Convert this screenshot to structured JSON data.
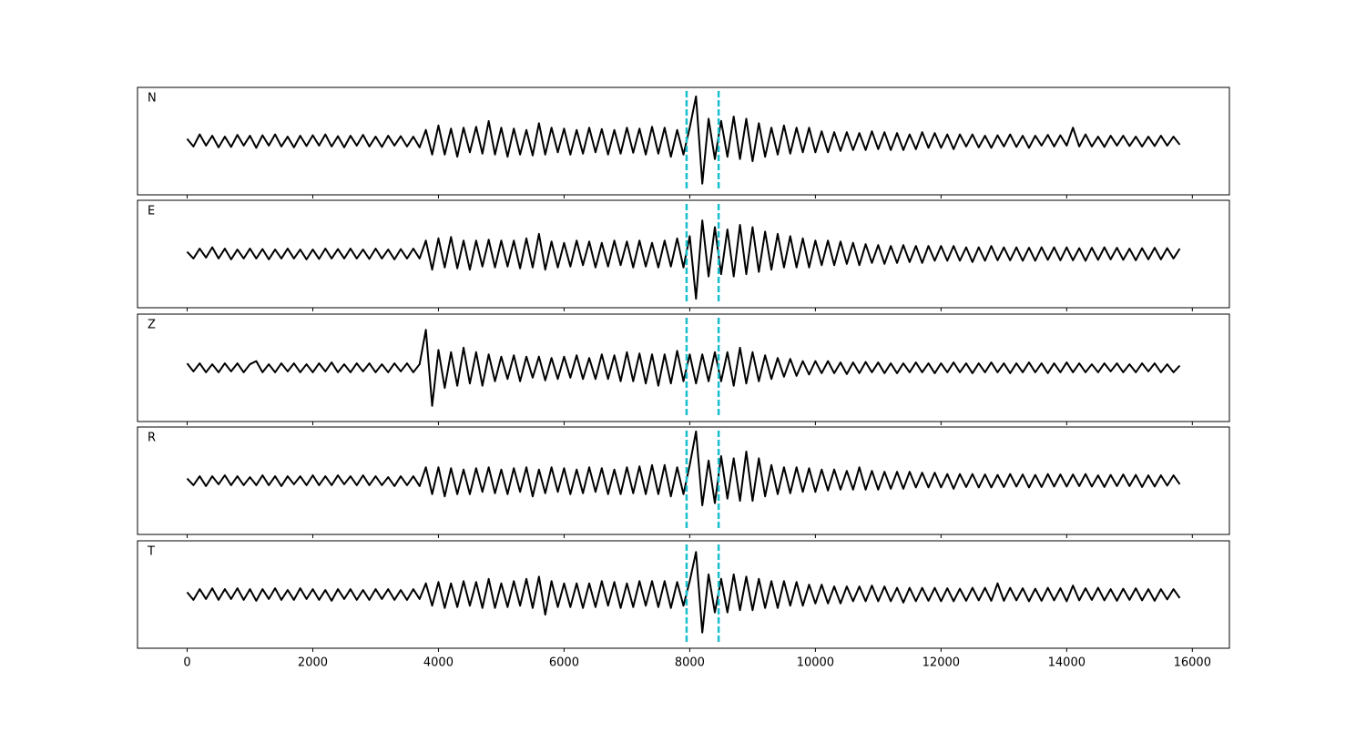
{
  "chart_data": {
    "type": "line",
    "x": [
      0,
      100,
      200,
      300,
      400,
      500,
      600,
      700,
      800,
      900,
      1000,
      1100,
      1200,
      1300,
      1400,
      1500,
      1600,
      1700,
      1800,
      1900,
      2000,
      2100,
      2200,
      2300,
      2400,
      2500,
      2600,
      2700,
      2800,
      2900,
      3000,
      3100,
      3200,
      3300,
      3400,
      3500,
      3600,
      3700,
      3800,
      3900,
      4000,
      4100,
      4200,
      4300,
      4400,
      4500,
      4600,
      4700,
      4800,
      4900,
      5000,
      5100,
      5200,
      5300,
      5400,
      5500,
      5600,
      5700,
      5800,
      5900,
      6000,
      6100,
      6200,
      6300,
      6400,
      6500,
      6600,
      6700,
      6800,
      6900,
      7000,
      7100,
      7200,
      7300,
      7400,
      7500,
      7600,
      7700,
      7800,
      7900,
      8000,
      8100,
      8200,
      8300,
      8400,
      8500,
      8600,
      8700,
      8800,
      8900,
      9000,
      9100,
      9200,
      9300,
      9400,
      9500,
      9600,
      9700,
      9800,
      9900,
      10000,
      10100,
      10200,
      10300,
      10400,
      10500,
      10600,
      10700,
      10800,
      10900,
      11000,
      11100,
      11200,
      11300,
      11400,
      11500,
      11600,
      11700,
      11800,
      11900,
      12000,
      12100,
      12200,
      12300,
      12400,
      12500,
      12600,
      12700,
      12800,
      12900,
      13000,
      13100,
      13200,
      13300,
      13400,
      13500,
      13600,
      13700,
      13800,
      13900,
      14000,
      14100,
      14200,
      14300,
      14400,
      14500,
      14600,
      14700,
      14800,
      14900,
      15000,
      15100,
      15200,
      15300,
      15400,
      15500,
      15600,
      15700,
      15800
    ],
    "series": [
      {
        "name": "N",
        "color": "#000000",
        "values": [
          0.05,
          -0.12,
          0.15,
          -0.1,
          0.12,
          -0.14,
          0.1,
          -0.13,
          0.14,
          -0.1,
          0.12,
          -0.15,
          0.13,
          -0.1,
          0.15,
          -0.12,
          0.1,
          -0.14,
          0.12,
          -0.11,
          0.13,
          -0.1,
          0.15,
          -0.12,
          0.11,
          -0.14,
          0.12,
          -0.1,
          0.14,
          -0.12,
          0.1,
          -0.13,
          0.12,
          -0.1,
          0.11,
          -0.12,
          0.1,
          -0.14,
          0.25,
          -0.3,
          0.35,
          -0.3,
          0.28,
          -0.35,
          0.3,
          -0.25,
          0.32,
          -0.28,
          0.45,
          -0.3,
          0.3,
          -0.35,
          0.28,
          -0.3,
          0.25,
          -0.32,
          0.4,
          -0.3,
          0.3,
          -0.25,
          0.28,
          -0.3,
          0.25,
          -0.28,
          0.3,
          -0.25,
          0.27,
          -0.3,
          0.25,
          -0.28,
          0.3,
          -0.26,
          0.28,
          -0.3,
          0.32,
          -0.28,
          0.3,
          -0.35,
          0.25,
          -0.3,
          0.3,
          1.0,
          -0.95,
          0.5,
          -0.4,
          0.45,
          -0.35,
          0.55,
          -0.4,
          0.5,
          -0.45,
          0.4,
          -0.35,
          0.3,
          -0.3,
          0.35,
          -0.28,
          0.3,
          -0.25,
          0.3,
          -0.25,
          0.22,
          -0.25,
          0.2,
          -0.22,
          0.2,
          -0.2,
          0.18,
          -0.2,
          0.22,
          -0.18,
          0.2,
          -0.2,
          0.18,
          -0.2,
          0.15,
          -0.18,
          0.2,
          -0.15,
          0.18,
          -0.15,
          0.15,
          -0.18,
          0.15,
          -0.12,
          0.15,
          -0.14,
          0.12,
          -0.15,
          0.13,
          -0.12,
          0.15,
          -0.13,
          0.12,
          -0.15,
          0.12,
          -0.1,
          0.14,
          -0.12,
          0.13,
          -0.1,
          0.3,
          -0.12,
          0.15,
          -0.12,
          0.1,
          -0.13,
          0.12,
          -0.1,
          0.12,
          -0.11,
          0.1,
          -0.12,
          0.1,
          -0.11,
          0.12,
          -0.1,
          0.1,
          -0.08
        ]
      },
      {
        "name": "E",
        "color": "#000000",
        "values": [
          0.05,
          -0.1,
          0.12,
          -0.08,
          0.15,
          -0.1,
          0.12,
          -0.12,
          0.1,
          -0.1,
          0.12,
          -0.1,
          0.11,
          -0.12,
          0.1,
          -0.1,
          0.12,
          -0.1,
          0.1,
          -0.12,
          0.1,
          -0.11,
          0.12,
          -0.1,
          0.11,
          -0.1,
          0.12,
          -0.1,
          0.1,
          -0.11,
          0.12,
          -0.1,
          0.1,
          -0.12,
          0.11,
          -0.1,
          0.12,
          -0.1,
          0.3,
          -0.35,
          0.35,
          -0.3,
          0.38,
          -0.32,
          0.3,
          -0.35,
          0.3,
          -0.28,
          0.32,
          -0.3,
          0.3,
          -0.28,
          0.3,
          -0.32,
          0.35,
          -0.3,
          0.45,
          -0.35,
          0.28,
          -0.3,
          0.25,
          -0.28,
          0.3,
          -0.25,
          0.28,
          -0.3,
          0.25,
          -0.28,
          0.3,
          -0.25,
          0.28,
          -0.3,
          0.3,
          -0.28,
          0.25,
          -0.3,
          0.3,
          -0.28,
          0.35,
          -0.3,
          0.4,
          -1.0,
          0.75,
          -0.5,
          0.6,
          -0.45,
          0.55,
          -0.5,
          0.65,
          -0.45,
          0.6,
          -0.4,
          0.5,
          -0.35,
          0.45,
          -0.3,
          0.4,
          -0.3,
          0.35,
          -0.3,
          0.3,
          -0.25,
          0.3,
          -0.25,
          0.28,
          -0.22,
          0.25,
          -0.25,
          0.22,
          -0.2,
          0.2,
          -0.22,
          0.18,
          -0.2,
          0.2,
          -0.18,
          0.18,
          -0.2,
          0.18,
          -0.15,
          0.18,
          -0.15,
          0.18,
          -0.15,
          0.15,
          -0.18,
          0.15,
          -0.15,
          0.18,
          -0.14,
          0.15,
          -0.14,
          0.15,
          -0.15,
          0.14,
          -0.15,
          0.15,
          -0.13,
          0.15,
          -0.14,
          0.15,
          -0.14,
          0.13,
          -0.15,
          0.14,
          -0.13,
          0.15,
          -0.12,
          0.14,
          -0.13,
          0.12,
          -0.14,
          0.13,
          -0.12,
          0.14,
          -0.12,
          0.13,
          -0.1,
          0.12
        ]
      },
      {
        "name": "Z",
        "color": "#000000",
        "values": [
          0.1,
          -0.08,
          0.1,
          -0.1,
          0.08,
          -0.1,
          0.1,
          -0.08,
          0.1,
          -0.1,
          0.08,
          0.15,
          -0.1,
          0.08,
          -0.1,
          0.1,
          -0.08,
          0.1,
          -0.1,
          0.08,
          -0.1,
          0.1,
          -0.08,
          0.12,
          -0.1,
          0.08,
          -0.1,
          0.1,
          -0.08,
          0.1,
          -0.1,
          0.08,
          -0.1,
          0.1,
          -0.08,
          0.1,
          -0.1,
          0.08,
          0.85,
          -0.85,
          0.4,
          -0.45,
          0.35,
          -0.4,
          0.45,
          -0.35,
          0.35,
          -0.4,
          0.3,
          -0.3,
          0.25,
          -0.25,
          0.28,
          -0.3,
          0.25,
          -0.22,
          0.25,
          -0.28,
          0.22,
          -0.25,
          0.25,
          -0.22,
          0.28,
          -0.25,
          0.22,
          -0.25,
          0.3,
          -0.25,
          0.28,
          -0.3,
          0.35,
          -0.3,
          0.32,
          -0.35,
          0.3,
          -0.4,
          0.3,
          -0.35,
          0.38,
          -0.3,
          0.3,
          -0.35,
          0.3,
          -0.3,
          0.35,
          -0.3,
          0.35,
          -0.4,
          0.45,
          -0.35,
          0.35,
          -0.3,
          0.28,
          -0.25,
          0.22,
          -0.2,
          0.2,
          -0.18,
          0.15,
          -0.15,
          0.15,
          -0.12,
          0.15,
          -0.12,
          0.12,
          -0.14,
          0.12,
          -0.12,
          0.13,
          -0.1,
          0.12,
          -0.12,
          0.1,
          -0.12,
          0.1,
          -0.1,
          0.12,
          -0.1,
          0.1,
          -0.12,
          0.1,
          -0.1,
          0.12,
          -0.1,
          0.1,
          -0.12,
          0.1,
          -0.1,
          0.12,
          -0.1,
          0.1,
          -0.12,
          0.1,
          -0.1,
          0.12,
          -0.1,
          0.1,
          -0.12,
          0.1,
          -0.1,
          0.12,
          -0.1,
          0.1,
          -0.1,
          0.08,
          -0.1,
          0.1,
          -0.08,
          0.1,
          -0.1,
          0.08,
          -0.1,
          0.1,
          -0.08,
          0.1,
          -0.1,
          0.08,
          -0.1,
          0.05
        ]
      },
      {
        "name": "R",
        "color": "#000000",
        "values": [
          0.05,
          -0.1,
          0.1,
          -0.12,
          0.1,
          -0.08,
          0.12,
          -0.1,
          0.1,
          -0.1,
          0.08,
          -0.1,
          0.12,
          -0.1,
          0.1,
          -0.12,
          0.1,
          -0.08,
          0.1,
          -0.1,
          0.12,
          -0.1,
          0.1,
          -0.1,
          0.12,
          -0.08,
          0.1,
          -0.1,
          0.12,
          -0.1,
          0.1,
          -0.1,
          0.08,
          -0.12,
          0.1,
          -0.1,
          0.1,
          -0.12,
          0.3,
          -0.3,
          0.3,
          -0.35,
          0.28,
          -0.3,
          0.25,
          -0.3,
          0.28,
          -0.25,
          0.3,
          -0.28,
          0.25,
          -0.3,
          0.28,
          -0.25,
          0.3,
          -0.35,
          0.25,
          -0.28,
          0.3,
          -0.25,
          0.28,
          -0.3,
          0.25,
          -0.28,
          0.3,
          -0.25,
          0.28,
          -0.3,
          0.25,
          -0.3,
          0.3,
          -0.28,
          0.32,
          -0.3,
          0.35,
          -0.3,
          0.35,
          -0.35,
          0.3,
          -0.3,
          0.35,
          1.1,
          -0.55,
          0.45,
          -0.5,
          0.55,
          -0.4,
          0.5,
          -0.45,
          0.65,
          -0.45,
          0.5,
          -0.35,
          0.35,
          -0.3,
          0.3,
          -0.28,
          0.3,
          -0.25,
          0.28,
          -0.25,
          0.25,
          -0.22,
          0.25,
          -0.2,
          0.22,
          -0.2,
          0.3,
          -0.2,
          0.22,
          -0.2,
          0.2,
          -0.18,
          0.2,
          -0.18,
          0.2,
          -0.15,
          0.18,
          -0.15,
          0.18,
          -0.15,
          0.15,
          -0.18,
          0.15,
          -0.14,
          0.15,
          -0.15,
          0.14,
          -0.15,
          0.13,
          -0.14,
          0.15,
          -0.13,
          0.14,
          -0.15,
          0.13,
          -0.14,
          0.15,
          -0.13,
          0.14,
          -0.13,
          0.14,
          -0.12,
          0.15,
          -0.13,
          0.12,
          -0.14,
          0.13,
          -0.12,
          0.14,
          -0.12,
          0.13,
          -0.14,
          0.12,
          -0.13,
          0.12,
          -0.11,
          0.12,
          -0.08
        ]
      },
      {
        "name": "T",
        "color": "#000000",
        "values": [
          0.05,
          -0.12,
          0.12,
          -0.1,
          0.14,
          -0.12,
          0.12,
          -0.1,
          0.14,
          -0.12,
          0.12,
          -0.14,
          0.12,
          -0.1,
          0.14,
          -0.12,
          0.1,
          -0.12,
          0.14,
          -0.1,
          0.12,
          -0.12,
          0.1,
          -0.14,
          0.12,
          -0.1,
          0.12,
          -0.12,
          0.1,
          -0.12,
          0.12,
          -0.1,
          0.12,
          -0.12,
          0.1,
          -0.12,
          0.12,
          -0.1,
          0.25,
          -0.25,
          0.28,
          -0.3,
          0.25,
          -0.28,
          0.3,
          -0.25,
          0.28,
          -0.3,
          0.35,
          -0.3,
          0.25,
          -0.28,
          0.3,
          -0.25,
          0.35,
          -0.3,
          0.4,
          -0.45,
          0.3,
          -0.28,
          0.25,
          -0.28,
          0.25,
          -0.3,
          0.25,
          -0.28,
          0.3,
          -0.25,
          0.28,
          -0.3,
          0.25,
          -0.28,
          0.3,
          -0.25,
          0.3,
          -0.28,
          0.3,
          -0.3,
          0.28,
          -0.25,
          0.3,
          0.95,
          -0.85,
          0.45,
          -0.4,
          0.35,
          -0.4,
          0.45,
          -0.35,
          0.4,
          -0.35,
          0.35,
          -0.3,
          0.3,
          -0.3,
          0.3,
          -0.25,
          0.28,
          -0.25,
          0.22,
          -0.2,
          0.22,
          -0.2,
          0.18,
          -0.2,
          0.18,
          -0.15,
          0.18,
          -0.15,
          0.2,
          -0.15,
          0.18,
          -0.15,
          0.15,
          -0.18,
          0.15,
          -0.15,
          0.15,
          -0.14,
          0.15,
          -0.15,
          0.14,
          -0.15,
          0.13,
          -0.14,
          0.15,
          -0.13,
          0.15,
          -0.14,
          0.25,
          -0.14,
          0.15,
          -0.13,
          0.14,
          -0.15,
          0.13,
          -0.14,
          0.15,
          -0.13,
          0.14,
          -0.15,
          0.2,
          -0.13,
          0.14,
          -0.12,
          0.15,
          -0.13,
          0.12,
          -0.14,
          0.13,
          -0.12,
          0.14,
          -0.13,
          0.12,
          -0.14,
          0.12,
          -0.11,
          0.12,
          -0.08
        ]
      }
    ],
    "xlim": [
      -790,
      16590
    ],
    "xticks": [
      0,
      2000,
      4000,
      6000,
      8000,
      10000,
      12000,
      14000,
      16000
    ],
    "ylim": [
      -1.2,
      1.2
    ],
    "vlines": [
      7950,
      8460
    ],
    "vline_color": "#17becf",
    "vline_style": "dashed"
  }
}
